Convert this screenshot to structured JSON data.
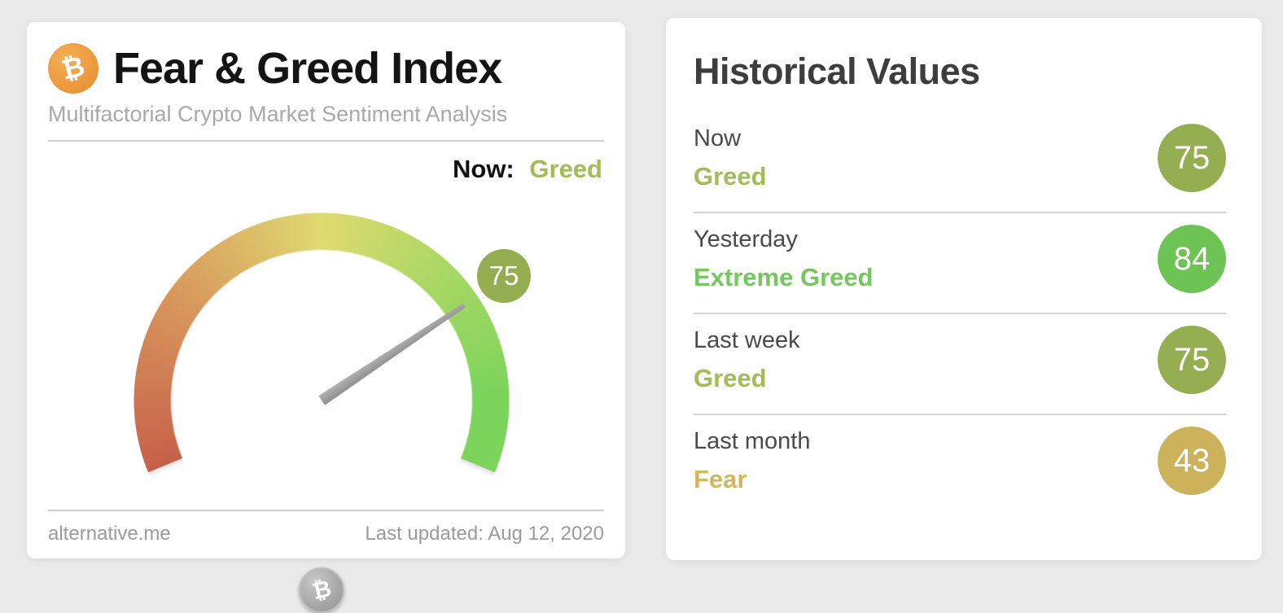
{
  "page": {
    "background_color": "#eaeaea"
  },
  "fng_card": {
    "bitcoin_symbol": "₿",
    "title": "Fear & Greed Index",
    "subtitle": "Multifactorial Crypto Market Sentiment Analysis",
    "now_label": "Now:",
    "now_classification": "Greed",
    "now_classification_color": "#a2bd57",
    "gauge_badge_color": "#94ad51",
    "footer_site": "alternative.me",
    "footer_updated": "Last updated: Aug 12, 2020"
  },
  "historical_card": {
    "title": "Historical Values",
    "rows": [
      {
        "label": "Now",
        "classification": "Greed",
        "value": 75,
        "color": "#a2bd57",
        "badge_color": "#95ae52"
      },
      {
        "label": "Yesterday",
        "classification": "Extreme Greed",
        "value": 84,
        "color": "#73c95c",
        "badge_color": "#6ec355"
      },
      {
        "label": "Last week",
        "classification": "Greed",
        "value": 75,
        "color": "#a2bd57",
        "badge_color": "#95ae52"
      },
      {
        "label": "Last month",
        "classification": "Fear",
        "value": 43,
        "color": "#d1b75d",
        "badge_color": "#ccb25a"
      }
    ]
  },
  "chart_data": {
    "type": "gauge",
    "title": "Fear & Greed Index",
    "value": 75,
    "classification": "Greed",
    "range": [
      0,
      100
    ],
    "arc_span_degrees": 225,
    "gauge_colors": [
      "#c6604a",
      "#d8955c",
      "#dfda71",
      "#a5d763",
      "#7cd45c"
    ],
    "needle_color": "#9b9b9b",
    "last_updated": "Aug 12, 2020",
    "historical": [
      {
        "period": "Now",
        "classification": "Greed",
        "value": 75
      },
      {
        "period": "Yesterday",
        "classification": "Extreme Greed",
        "value": 84
      },
      {
        "period": "Last week",
        "classification": "Greed",
        "value": 75
      },
      {
        "period": "Last month",
        "classification": "Fear",
        "value": 43
      }
    ]
  }
}
